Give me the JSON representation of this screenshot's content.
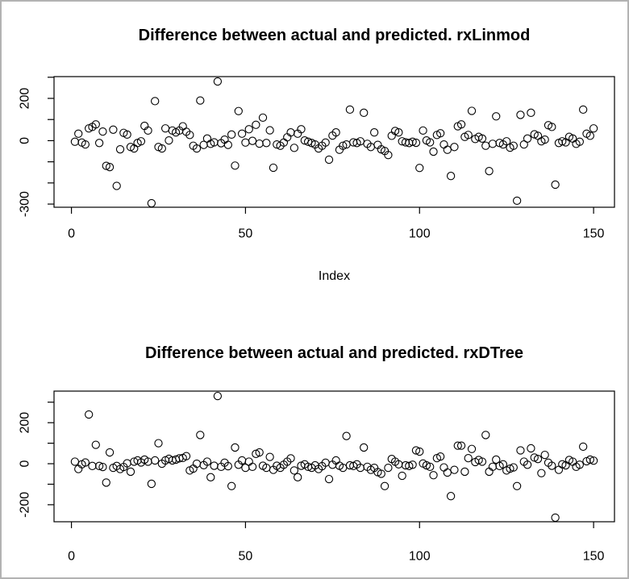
{
  "figure": {
    "background_color": "#ffffff",
    "border_color": "#b2b2b2",
    "axis_color": "#000000",
    "point_color": "#000000"
  },
  "chart_data": [
    {
      "type": "scatter",
      "title": "Difference between actual and predicted. rxLinmod",
      "xlabel": "Index",
      "ylabel": "",
      "marker": "open-circle",
      "grid": false,
      "legend": null,
      "x": {
        "from": 1,
        "to": 150,
        "step": 1
      },
      "xlim": [
        -5,
        156
      ],
      "ylim": [
        -315,
        303
      ],
      "x_ticks": [
        {
          "value": 0,
          "label": "0"
        },
        {
          "value": 50,
          "label": "50"
        },
        {
          "value": 100,
          "label": "100"
        },
        {
          "value": 150,
          "label": "150"
        }
      ],
      "y_ticks": [
        {
          "value": 300,
          "label": ""
        },
        {
          "value": 200,
          "label": "200"
        },
        {
          "value": 100,
          "label": ""
        },
        {
          "value": 0,
          "label": "0"
        },
        {
          "value": -100,
          "label": ""
        },
        {
          "value": -200,
          "label": ""
        },
        {
          "value": -300,
          "label": "-300"
        }
      ],
      "values": [
        -5,
        33,
        -9,
        -18,
        58,
        65,
        77,
        -11,
        43,
        -119,
        -125,
        52,
        -214,
        -41,
        37,
        29,
        -30,
        -37,
        -11,
        -3,
        70,
        48,
        -296,
        187,
        -30,
        -37,
        58,
        1,
        48,
        39,
        48,
        68,
        42,
        27,
        -24,
        -37,
        190,
        -20,
        10,
        -15,
        -8,
        280,
        -12,
        5,
        -20,
        29,
        -118,
        140,
        33,
        -9,
        54,
        -1,
        75,
        -14,
        109,
        -11,
        49,
        -128,
        -18,
        -24,
        -9,
        16,
        39,
        -34,
        33,
        54,
        1,
        -5,
        -11,
        -18,
        -37,
        -24,
        -9,
        -90,
        24,
        39,
        -43,
        -24,
        -18,
        147,
        -8,
        -11,
        -3,
        132,
        -15,
        -30,
        39,
        -20,
        -41,
        -49,
        -68,
        23,
        46,
        39,
        -3,
        -8,
        -11,
        -5,
        -10,
        -129,
        48,
        1,
        -8,
        -52,
        27,
        35,
        -18,
        -43,
        -167,
        -30,
        68,
        77,
        18,
        27,
        141,
        8,
        18,
        10,
        -24,
        -144,
        -15,
        115,
        -11,
        -18,
        -3,
        -33,
        -24,
        -284,
        122,
        -18,
        10,
        132,
        30,
        23,
        -3,
        5,
        73,
        65,
        -208,
        -11,
        -3,
        -8,
        18,
        10,
        -15,
        -5,
        147,
        33,
        23,
        58
      ]
    },
    {
      "type": "scatter",
      "title": "Difference between actual and predicted. rxDTree",
      "xlabel": "",
      "ylabel": "",
      "marker": "open-circle",
      "grid": false,
      "legend": null,
      "x": {
        "from": 1,
        "to": 150,
        "step": 1
      },
      "xlim": [
        -5,
        156
      ],
      "ylim": [
        -283,
        354
      ],
      "x_ticks": [
        {
          "value": 0,
          "label": "0"
        },
        {
          "value": 50,
          "label": "50"
        },
        {
          "value": 100,
          "label": "100"
        },
        {
          "value": 150,
          "label": "150"
        }
      ],
      "y_ticks": [
        {
          "value": 300,
          "label": ""
        },
        {
          "value": 200,
          "label": "200"
        },
        {
          "value": 100,
          "label": ""
        },
        {
          "value": 0,
          "label": "0"
        },
        {
          "value": -100,
          "label": ""
        },
        {
          "value": -200,
          "label": "-200"
        }
      ],
      "values": [
        10,
        -26,
        -3,
        6,
        240,
        -11,
        92,
        -11,
        -16,
        -92,
        55,
        -20,
        -11,
        -26,
        -16,
        2,
        -39,
        10,
        16,
        6,
        20,
        10,
        -98,
        16,
        100,
        0,
        16,
        24,
        16,
        20,
        26,
        28,
        37,
        -33,
        -24,
        0,
        140,
        -7,
        10,
        -66,
        -10,
        330,
        -15,
        5,
        -12,
        -109,
        79,
        -5,
        16,
        -20,
        10,
        -15,
        48,
        55,
        -10,
        -20,
        33,
        -30,
        -10,
        -20,
        -5,
        10,
        26,
        -33,
        -66,
        -10,
        -3,
        -15,
        -20,
        -8,
        -26,
        -12,
        5,
        -75,
        -5,
        16,
        -10,
        -20,
        135,
        -8,
        -11,
        -3,
        -20,
        79,
        -15,
        -30,
        -20,
        -41,
        -49,
        -109,
        -20,
        23,
        10,
        -3,
        -59,
        -8,
        -11,
        -5,
        65,
        59,
        1,
        -8,
        -15,
        -56,
        27,
        35,
        -18,
        -43,
        -158,
        -30,
        88,
        88,
        -39,
        27,
        72,
        8,
        18,
        10,
        140,
        -39,
        -15,
        20,
        -11,
        -3,
        -33,
        -24,
        -18,
        -109,
        65,
        10,
        -5,
        75,
        30,
        23,
        -46,
        43,
        5,
        -10,
        -263,
        -30,
        -3,
        -8,
        18,
        10,
        -15,
        -5,
        83,
        12,
        20,
        15
      ]
    }
  ]
}
